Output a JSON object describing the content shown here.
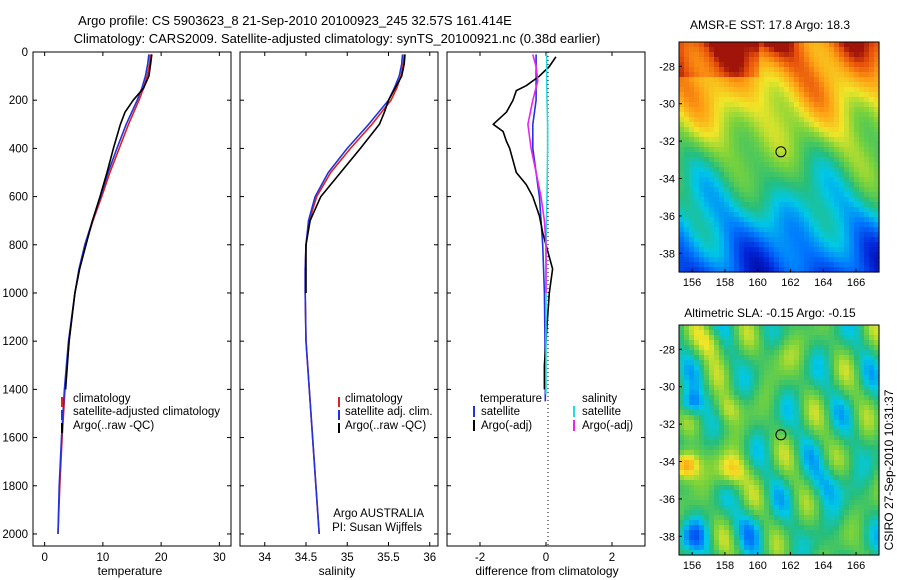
{
  "header": {
    "title_line1": "Argo profile: CS 5903623_8 21-Sep-2010 20100923_245 32.57S 161.414E",
    "title_line2": "Climatology: CARS2009. Satellite-adjusted climatology: synTS_20100921.nc (0.38d earlier)"
  },
  "stamp": "CSIRO 27-Sep-2010 10:31:37",
  "colors": {
    "climatology": "#dd2222",
    "satellite": "#2233dd",
    "argo": "#000000",
    "sal_satellite": "#22dddd",
    "sal_argo": "#ee22ee",
    "zero_line": "#000000"
  },
  "chart_data": [
    {
      "type": "line",
      "id": "temperature",
      "xlabel": "temperature",
      "ylabel": "",
      "xlim": [
        -2,
        32
      ],
      "ylim": [
        0,
        2050
      ],
      "y_reversed": true,
      "xticks": [
        0,
        10,
        20,
        30
      ],
      "xtick_labels": [
        "0",
        "10",
        "20",
        "30"
      ],
      "yticks": [
        0,
        200,
        400,
        600,
        800,
        1000,
        1200,
        1400,
        1600,
        1800,
        2000
      ],
      "ytick_labels": [
        "0",
        "200",
        "400",
        "600",
        "800",
        "1000",
        "1200",
        "1400",
        "1600",
        "1800",
        "2000"
      ],
      "legend": [
        "climatology",
        "satellite-adjusted climatology",
        "Argo(..raw -QC)"
      ],
      "legend_position": "lower-right",
      "series": [
        {
          "name": "climatology",
          "color": "#dd2222",
          "depth": [
            10,
            50,
            100,
            150,
            200,
            300,
            400,
            500,
            600,
            700,
            800,
            900,
            1000,
            1200,
            1400,
            1600,
            1800,
            2000
          ],
          "values": [
            18.2,
            18.0,
            17.6,
            17.0,
            16.2,
            14.4,
            12.8,
            11.2,
            9.8,
            8.3,
            7.0,
            6.0,
            5.2,
            4.2,
            3.5,
            3.0,
            2.6,
            2.3
          ]
        },
        {
          "name": "satellite-adjusted climatology",
          "color": "#2233dd",
          "depth": [
            10,
            50,
            100,
            150,
            200,
            300,
            400,
            500,
            600,
            700,
            800,
            900,
            1000,
            1200,
            1400,
            1600,
            1800,
            2000
          ],
          "values": [
            17.9,
            17.7,
            17.3,
            16.7,
            15.9,
            14.0,
            12.4,
            10.9,
            9.6,
            8.2,
            6.9,
            5.9,
            5.2,
            4.1,
            3.4,
            2.9,
            2.5,
            2.3
          ]
        },
        {
          "name": "Argo(..raw -QC)",
          "color": "#000000",
          "depth": [
            10,
            50,
            100,
            150,
            200,
            250,
            300,
            400,
            500,
            600,
            700,
            800,
            900,
            1000,
            1200,
            1400
          ],
          "values": [
            18.4,
            18.2,
            17.9,
            17.0,
            15.2,
            13.8,
            13.0,
            11.8,
            10.7,
            9.5,
            8.2,
            7.1,
            6.0,
            5.2,
            4.2,
            3.6
          ]
        }
      ]
    },
    {
      "type": "line",
      "id": "salinity",
      "xlabel": "salinity",
      "ylabel": "",
      "xlim": [
        33.7,
        36.1
      ],
      "ylim": [
        0,
        2050
      ],
      "y_reversed": true,
      "xticks": [
        34,
        34.5,
        35,
        35.5,
        36
      ],
      "xtick_labels": [
        "34",
        "34.5",
        "35",
        "35.5",
        "36"
      ],
      "legend": [
        "climatology",
        "satellite adj. clim.",
        "Argo(..raw -QC)"
      ],
      "legend_position": "lower-right",
      "annotation_line1": "Argo AUSTRALIA",
      "annotation_line2": "PI: Susan Wijffels",
      "series": [
        {
          "name": "climatology",
          "color": "#dd2222",
          "depth": [
            10,
            50,
            100,
            150,
            200,
            300,
            400,
            500,
            600,
            700,
            800,
            900,
            1000,
            1200,
            1400,
            1600,
            1800,
            2000
          ],
          "values": [
            35.69,
            35.68,
            35.65,
            35.6,
            35.53,
            35.3,
            35.04,
            34.8,
            34.63,
            34.54,
            34.5,
            34.49,
            34.49,
            34.5,
            34.54,
            34.58,
            34.62,
            34.66
          ]
        },
        {
          "name": "satellite adj. clim.",
          "color": "#2233dd",
          "depth": [
            10,
            50,
            100,
            150,
            200,
            300,
            400,
            500,
            600,
            700,
            800,
            900,
            1000,
            1200,
            1400,
            1600,
            1800,
            2000
          ],
          "values": [
            35.67,
            35.66,
            35.63,
            35.57,
            35.5,
            35.26,
            35.0,
            34.77,
            34.61,
            34.53,
            34.5,
            34.49,
            34.49,
            34.5,
            34.54,
            34.58,
            34.62,
            34.66
          ]
        },
        {
          "name": "Argo(..raw -QC)",
          "color": "#000000",
          "depth": [
            10,
            50,
            100,
            150,
            200,
            250,
            300,
            400,
            500,
            600,
            700,
            800,
            900,
            1000
          ],
          "values": [
            35.7,
            35.69,
            35.66,
            35.58,
            35.5,
            35.45,
            35.39,
            35.16,
            34.92,
            34.68,
            34.55,
            34.5,
            34.5,
            34.5
          ]
        }
      ]
    },
    {
      "type": "line",
      "id": "difference",
      "xlabel": "difference from climatology",
      "ylabel": "",
      "xlim": [
        -3,
        3
      ],
      "ylim": [
        0,
        2050
      ],
      "y_reversed": true,
      "xticks": [
        -2,
        0,
        2
      ],
      "xtick_labels": [
        "-2",
        "0",
        "2"
      ],
      "legend_group_left": {
        "title": "temperature",
        "items": [
          "satellite",
          "Argo(-adj)"
        ]
      },
      "legend_group_right": {
        "title": "salinity",
        "items": [
          "satellite",
          "Argo(-adj)"
        ]
      },
      "series": [
        {
          "name": "temperature satellite",
          "color": "#2233dd",
          "depth": [
            10,
            50,
            100,
            150,
            200,
            300,
            400,
            600,
            800,
            1000,
            1200,
            1400,
            1450
          ],
          "values": [
            -0.3,
            -0.3,
            -0.3,
            -0.3,
            -0.3,
            -0.4,
            -0.4,
            -0.2,
            -0.1,
            -0.05,
            -0.03,
            -0.02,
            -0.02
          ]
        },
        {
          "name": "temperature Argo(-adj)",
          "color": "#000000",
          "depth": [
            20,
            60,
            100,
            140,
            160,
            200,
            250,
            300,
            330,
            370,
            400,
            450,
            500,
            550,
            600,
            680,
            750,
            800,
            900,
            1000,
            1100,
            1200,
            1300,
            1400
          ],
          "values": [
            0.3,
            0.1,
            -0.2,
            -0.6,
            -0.9,
            -1.0,
            -1.2,
            -1.6,
            -1.3,
            -1.2,
            -1.1,
            -1.0,
            -0.9,
            -0.6,
            -0.4,
            -0.2,
            -0.1,
            0.0,
            0.2,
            0.1,
            0.05,
            0.0,
            -0.05,
            -0.05
          ]
        },
        {
          "name": "salinity satellite",
          "color": "#22dddd",
          "depth": [
            10,
            100,
            200,
            300,
            400,
            500,
            600,
            800,
            1000,
            1200,
            1400,
            1420
          ],
          "values": [
            0.02,
            0.02,
            0.03,
            0.05,
            0.05,
            0.04,
            0.03,
            0.0,
            0.0,
            0.0,
            0.0,
            0.0
          ]
        },
        {
          "name": "salinity Argo(-adj)",
          "color": "#ee22ee",
          "depth": [
            10,
            60,
            120,
            200,
            300,
            400,
            500,
            600,
            700,
            800,
            900,
            1000
          ],
          "values": [
            -0.4,
            -0.3,
            -0.25,
            -0.4,
            -0.55,
            -0.45,
            -0.3,
            -0.15,
            -0.05,
            0.0,
            0.0,
            0.0
          ]
        }
      ]
    },
    {
      "type": "heatmap",
      "id": "sst_map",
      "title": "AMSR-E SST: 17.8 Argo: 18.3",
      "xticks": [
        156,
        158,
        160,
        162,
        164,
        166
      ],
      "xtick_labels": [
        "156",
        "158",
        "160",
        "162",
        "164",
        "166"
      ],
      "yticks": [
        -28,
        -30,
        -32,
        -34,
        -36,
        -38
      ],
      "ytick_labels": [
        "-28",
        "-30",
        "-32",
        "-34",
        "-36",
        "-38"
      ],
      "xlim": [
        155.2,
        167.4
      ],
      "ylim": [
        -39.0,
        -26.7
      ],
      "float_position": [
        161.414,
        -32.57
      ],
      "pattern": "sst"
    },
    {
      "type": "heatmap",
      "id": "sla_map",
      "title": "Altimetric SLA: -0.15 Argo: -0.15",
      "xticks": [
        156,
        158,
        160,
        162,
        164,
        166
      ],
      "xtick_labels": [
        "156",
        "158",
        "160",
        "162",
        "164",
        "166"
      ],
      "yticks": [
        -28,
        -30,
        -32,
        -34,
        -36,
        -38
      ],
      "ytick_labels": [
        "-28",
        "-30",
        "-32",
        "-34",
        "-36",
        "-38"
      ],
      "xlim": [
        155.2,
        167.4
      ],
      "ylim": [
        -39.0,
        -26.7
      ],
      "float_position": [
        161.414,
        -32.57
      ],
      "pattern": "sla"
    }
  ]
}
